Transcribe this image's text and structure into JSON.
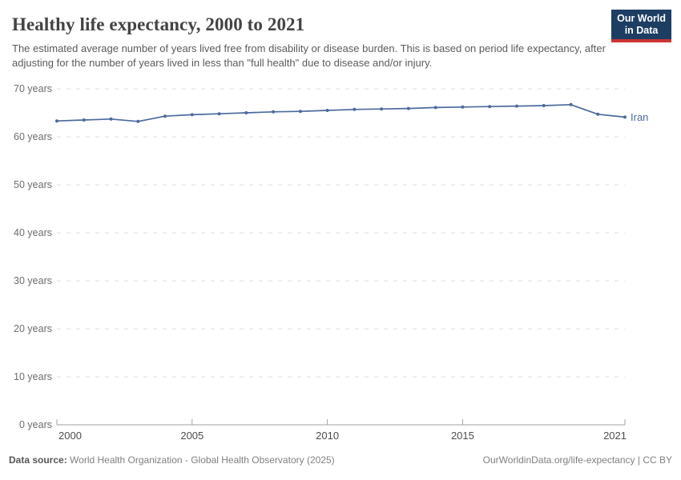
{
  "header": {
    "title": "Healthy life expectancy, 2000 to 2021",
    "subtitle": "The estimated average number of years lived free from disability or disease burden. This is based on period life expectancy, after adjusting for the number of years lived in less than \"full health\" due to disease and/or injury.",
    "logo": {
      "line1": "Our World",
      "line2": "in Data",
      "bg_color": "#1d3d63",
      "stripe_color": "#cc3434"
    }
  },
  "chart_data": {
    "type": "line",
    "title": "Healthy life expectancy, 2000 to 2021",
    "xlabel": "",
    "ylabel": "",
    "xlim": [
      2000,
      2021
    ],
    "ylim": [
      0,
      70
    ],
    "x_ticks": [
      2000,
      2005,
      2010,
      2015,
      2021
    ],
    "y_ticks": [
      0,
      10,
      20,
      30,
      40,
      50,
      60,
      70
    ],
    "y_tick_suffix": " years",
    "grid": "horizontal-dashed",
    "legend_position": "end-of-line-label",
    "series": [
      {
        "name": "Iran",
        "color": "#4c6a9c",
        "x": [
          2000,
          2001,
          2002,
          2003,
          2004,
          2005,
          2006,
          2007,
          2008,
          2009,
          2010,
          2011,
          2012,
          2013,
          2014,
          2015,
          2016,
          2017,
          2018,
          2019,
          2020,
          2021
        ],
        "values": [
          63.3,
          63.5,
          63.7,
          63.2,
          64.3,
          64.6,
          64.8,
          65.0,
          65.2,
          65.3,
          65.5,
          65.7,
          65.8,
          65.9,
          66.1,
          66.2,
          66.3,
          66.4,
          66.5,
          66.7,
          64.7,
          64.1
        ]
      }
    ]
  },
  "footer": {
    "source_label": "Data source:",
    "source_text": " World Health Organization - Global Health Observatory (2025)",
    "link_text": "OurWorldinData.org/life-expectancy | CC BY"
  }
}
